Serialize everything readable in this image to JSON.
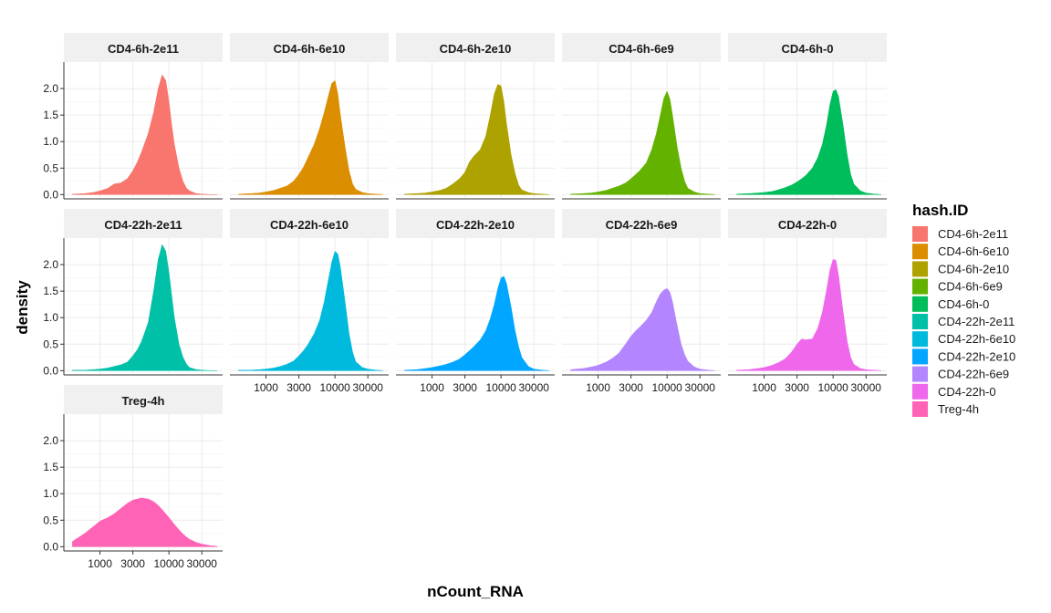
{
  "chart_data": {
    "type": "area",
    "subtype": "density-facets",
    "xlabel": "nCount_RNA",
    "ylabel": "density",
    "x_scale": "log10",
    "xlim": [
      300,
      60000
    ],
    "ylim": [
      -0.08,
      2.5
    ],
    "y_ticks": [
      0.0,
      0.5,
      1.0,
      1.5,
      2.0
    ],
    "y_tick_labels": [
      "0.0",
      "0.5",
      "1.0",
      "1.5",
      "2.0"
    ],
    "x_ticks": [
      1000,
      3000,
      10000,
      30000
    ],
    "x_tick_labels": [
      "1000",
      "3000",
      "10000",
      "30000"
    ],
    "grid": true,
    "facet_columns": 5,
    "legend": {
      "title": "hash.ID",
      "position": "right",
      "entries": [
        "CD4-6h-2e11",
        "CD4-6h-6e10",
        "CD4-6h-2e10",
        "CD4-6h-6e9",
        "CD4-6h-0",
        "CD4-22h-2e11",
        "CD4-22h-6e10",
        "CD4-22h-2e10",
        "CD4-22h-6e9",
        "CD4-22h-0",
        "Treg-4h"
      ]
    },
    "x": [
      400,
      600,
      800,
      1000,
      1300,
      1600,
      2000,
      2500,
      3000,
      3500,
      4000,
      5000,
      6000,
      7000,
      8000,
      9000,
      10000,
      11000,
      12000,
      14000,
      16000,
      18000,
      20000,
      25000,
      30000,
      40000,
      50000
    ],
    "series": [
      {
        "name": "CD4-6h-2e11",
        "color": "#F8766D",
        "y": [
          0.01,
          0.02,
          0.04,
          0.07,
          0.12,
          0.2,
          0.22,
          0.3,
          0.45,
          0.62,
          0.8,
          1.15,
          1.55,
          2.0,
          2.26,
          2.15,
          1.75,
          1.3,
          0.95,
          0.5,
          0.25,
          0.12,
          0.07,
          0.02,
          0.01,
          0.0,
          0.0
        ]
      },
      {
        "name": "CD4-6h-6e10",
        "color": "#DB8E00",
        "y": [
          0.01,
          0.02,
          0.03,
          0.05,
          0.08,
          0.12,
          0.16,
          0.25,
          0.38,
          0.52,
          0.68,
          0.95,
          1.25,
          1.55,
          1.85,
          2.1,
          2.15,
          1.9,
          1.5,
          0.9,
          0.45,
          0.2,
          0.1,
          0.04,
          0.02,
          0.01,
          0.0
        ]
      },
      {
        "name": "CD4-6h-2e10",
        "color": "#AEA200",
        "y": [
          0.01,
          0.02,
          0.03,
          0.05,
          0.08,
          0.12,
          0.2,
          0.3,
          0.42,
          0.62,
          0.72,
          0.85,
          1.1,
          1.5,
          1.9,
          2.08,
          2.05,
          1.75,
          1.35,
          0.75,
          0.4,
          0.18,
          0.09,
          0.04,
          0.02,
          0.01,
          0.0
        ]
      },
      {
        "name": "CD4-6h-6e9",
        "color": "#64B200",
        "y": [
          0.01,
          0.02,
          0.03,
          0.05,
          0.08,
          0.12,
          0.16,
          0.22,
          0.3,
          0.38,
          0.45,
          0.6,
          0.85,
          1.15,
          1.5,
          1.82,
          1.95,
          1.8,
          1.5,
          0.9,
          0.5,
          0.25,
          0.12,
          0.05,
          0.02,
          0.01,
          0.0
        ]
      },
      {
        "name": "CD4-6h-0",
        "color": "#00BD5C",
        "y": [
          0.01,
          0.02,
          0.03,
          0.04,
          0.06,
          0.09,
          0.13,
          0.18,
          0.24,
          0.3,
          0.36,
          0.5,
          0.7,
          0.95,
          1.3,
          1.7,
          1.95,
          1.98,
          1.85,
          1.3,
          0.75,
          0.38,
          0.2,
          0.07,
          0.03,
          0.01,
          0.0
        ]
      },
      {
        "name": "CD4-22h-2e11",
        "color": "#00C1A7",
        "y": [
          0.01,
          0.01,
          0.02,
          0.03,
          0.05,
          0.08,
          0.11,
          0.16,
          0.28,
          0.4,
          0.55,
          0.9,
          1.5,
          2.1,
          2.38,
          2.25,
          1.85,
          1.4,
          1.0,
          0.5,
          0.25,
          0.12,
          0.06,
          0.02,
          0.01,
          0.0,
          0.0
        ]
      },
      {
        "name": "CD4-22h-6e10",
        "color": "#00BADE",
        "y": [
          0.01,
          0.01,
          0.02,
          0.03,
          0.05,
          0.08,
          0.12,
          0.18,
          0.28,
          0.38,
          0.48,
          0.7,
          0.95,
          1.3,
          1.7,
          2.05,
          2.25,
          2.2,
          1.95,
          1.3,
          0.7,
          0.35,
          0.17,
          0.06,
          0.03,
          0.01,
          0.0
        ]
      },
      {
        "name": "CD4-22h-2e10",
        "color": "#00A6FF",
        "y": [
          0.01,
          0.02,
          0.04,
          0.06,
          0.09,
          0.12,
          0.16,
          0.22,
          0.3,
          0.38,
          0.45,
          0.58,
          0.75,
          0.98,
          1.25,
          1.55,
          1.75,
          1.78,
          1.65,
          1.2,
          0.75,
          0.45,
          0.25,
          0.08,
          0.03,
          0.01,
          0.0
        ]
      },
      {
        "name": "CD4-22h-6e9",
        "color": "#B385FF",
        "y": [
          0.02,
          0.04,
          0.07,
          0.1,
          0.16,
          0.23,
          0.33,
          0.5,
          0.65,
          0.75,
          0.82,
          0.95,
          1.1,
          1.3,
          1.45,
          1.52,
          1.55,
          1.48,
          1.3,
          0.85,
          0.5,
          0.3,
          0.18,
          0.07,
          0.03,
          0.01,
          0.0
        ]
      },
      {
        "name": "CD4-22h-0",
        "color": "#EF67EB",
        "y": [
          0.01,
          0.02,
          0.04,
          0.06,
          0.1,
          0.15,
          0.22,
          0.35,
          0.5,
          0.6,
          0.58,
          0.6,
          0.8,
          1.1,
          1.5,
          1.9,
          2.1,
          2.08,
          1.8,
          1.1,
          0.55,
          0.25,
          0.12,
          0.04,
          0.02,
          0.01,
          0.0
        ]
      },
      {
        "name": "Treg-4h",
        "color": "#FF63B6",
        "y": [
          0.1,
          0.25,
          0.38,
          0.48,
          0.55,
          0.62,
          0.72,
          0.82,
          0.88,
          0.9,
          0.92,
          0.9,
          0.85,
          0.78,
          0.7,
          0.62,
          0.55,
          0.48,
          0.42,
          0.32,
          0.24,
          0.18,
          0.14,
          0.08,
          0.05,
          0.02,
          0.01
        ]
      }
    ]
  }
}
